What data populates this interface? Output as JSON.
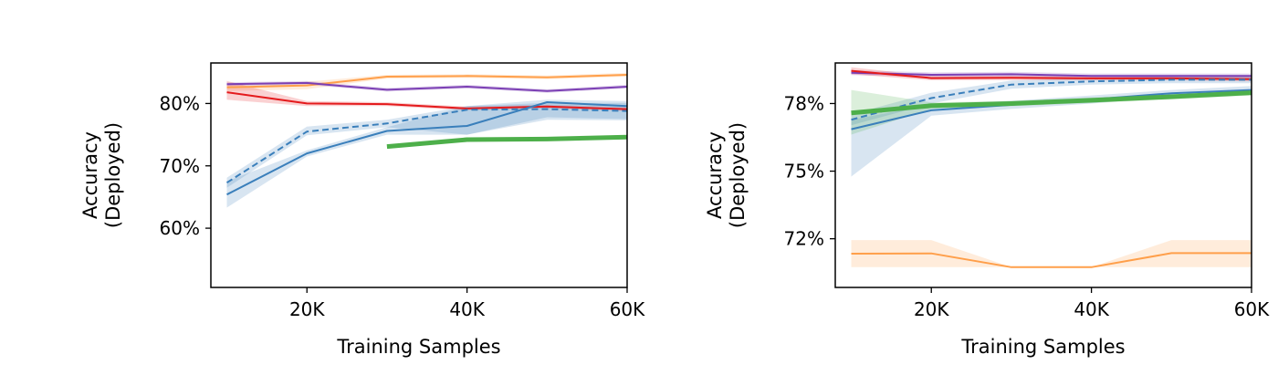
{
  "chart_data": [
    {
      "type": "line",
      "xlabel": "Training Samples",
      "ylabel": [
        "Accuracy",
        "(Deployed)"
      ],
      "xlim": [
        8000,
        60000
      ],
      "ylim": [
        50.5,
        86.5
      ],
      "xticks": [
        {
          "v": 20000,
          "label": "20K"
        },
        {
          "v": 40000,
          "label": "40K"
        },
        {
          "v": 60000,
          "label": "60K"
        }
      ],
      "yticks": [
        {
          "v": 60,
          "label": "60%"
        },
        {
          "v": 70,
          "label": "70%"
        },
        {
          "v": 80,
          "label": "80%"
        }
      ],
      "grid": false,
      "series": [
        {
          "color": "#ff9f4a",
          "style": "solid",
          "width": 2,
          "x": [
            10000,
            20000,
            30000,
            40000,
            50000,
            60000
          ],
          "y": [
            82.6,
            82.9,
            84.3,
            84.4,
            84.2,
            84.6
          ],
          "band_low": [
            82.0,
            82.3,
            84.0,
            84.1,
            83.9,
            84.3
          ],
          "band_high": [
            83.2,
            83.5,
            84.6,
            84.7,
            84.5,
            84.9
          ]
        },
        {
          "color": "#7b3fb4",
          "style": "solid",
          "width": 2,
          "x": [
            10000,
            20000,
            30000,
            40000,
            50000,
            60000
          ],
          "y": [
            83.1,
            83.3,
            82.2,
            82.7,
            82.0,
            82.7
          ],
          "band_low": [
            82.8,
            83.0,
            81.9,
            82.4,
            81.7,
            82.4
          ],
          "band_high": [
            83.4,
            83.6,
            82.5,
            83.0,
            82.3,
            83.0
          ]
        },
        {
          "color": "#e41a1c",
          "style": "solid",
          "width": 2,
          "x": [
            10000,
            20000,
            30000,
            40000,
            50000,
            60000
          ],
          "y": [
            81.8,
            80.0,
            79.9,
            79.2,
            79.5,
            79.1
          ],
          "band_low": [
            80.6,
            79.6,
            79.6,
            78.9,
            79.2,
            78.8
          ],
          "band_high": [
            83.6,
            80.4,
            80.2,
            79.5,
            79.8,
            79.4
          ]
        },
        {
          "color": "#3a7fbb",
          "style": "dashed",
          "width": 2,
          "x": [
            10000,
            20000,
            30000,
            40000,
            50000,
            60000
          ],
          "y": [
            67.3,
            75.5,
            76.8,
            79.0,
            79.1,
            78.8
          ],
          "band_low": [
            66.5,
            74.9,
            76.2,
            75.0,
            77.4,
            77.3
          ],
          "band_high": [
            68.1,
            76.3,
            77.4,
            79.6,
            80.1,
            80.1
          ]
        },
        {
          "color": "#3a7fbb",
          "style": "solid",
          "width": 2,
          "x": [
            10000,
            20000,
            30000,
            40000,
            50000,
            60000
          ],
          "y": [
            65.4,
            72.0,
            75.6,
            76.4,
            80.2,
            79.6
          ],
          "band_low": [
            63.3,
            71.5,
            75.0,
            75.0,
            77.8,
            77.5
          ],
          "band_high": [
            67.5,
            72.5,
            76.2,
            79.6,
            80.6,
            80.4
          ]
        },
        {
          "color": "#4daf4a",
          "style": "solid",
          "width": 5,
          "x": [
            30000,
            40000,
            50000,
            60000
          ],
          "y": [
            73.1,
            74.2,
            74.3,
            74.6
          ]
        }
      ]
    },
    {
      "type": "line",
      "xlabel": "Training Samples",
      "ylabel": [
        "Accuracy",
        "(Deployed)"
      ],
      "xlim": [
        8000,
        60000
      ],
      "ylim": [
        70.7,
        79.0
      ],
      "xticks": [
        {
          "v": 20000,
          "label": "20K"
        },
        {
          "v": 40000,
          "label": "40K"
        },
        {
          "v": 60000,
          "label": "60K"
        }
      ],
      "yticks": [
        {
          "v": 72.5,
          "label": "72%"
        },
        {
          "v": 75,
          "label": "75%"
        },
        {
          "v": 77.5,
          "label": "78%"
        }
      ],
      "grid": false,
      "series": [
        {
          "color": "#7b3fb4",
          "style": "solid",
          "width": 2,
          "x": [
            10000,
            20000,
            30000,
            40000,
            50000,
            60000
          ],
          "y": [
            78.64,
            78.56,
            78.58,
            78.52,
            78.52,
            78.52
          ],
          "band_low": [
            78.55,
            78.47,
            78.49,
            78.43,
            78.43,
            78.43
          ],
          "band_high": [
            78.73,
            78.65,
            78.67,
            78.61,
            78.61,
            78.61
          ]
        },
        {
          "color": "#e41a1c",
          "style": "solid",
          "width": 2,
          "x": [
            10000,
            20000,
            30000,
            40000,
            50000,
            60000
          ],
          "y": [
            78.71,
            78.44,
            78.45,
            78.43,
            78.43,
            78.4
          ],
          "band_low": [
            78.58,
            78.36,
            78.37,
            78.35,
            78.35,
            78.32
          ],
          "band_high": [
            78.84,
            78.52,
            78.53,
            78.51,
            78.51,
            78.48
          ]
        },
        {
          "color": "#3a7fbb",
          "style": "dashed",
          "width": 2,
          "x": [
            10000,
            20000,
            30000,
            40000,
            50000,
            60000
          ],
          "y": [
            76.9,
            77.7,
            78.2,
            78.32,
            78.38,
            78.38
          ],
          "band_low": [
            76.7,
            77.5,
            78.05,
            78.2,
            78.25,
            78.25
          ],
          "band_high": [
            77.1,
            77.9,
            78.35,
            78.44,
            78.51,
            78.51
          ]
        },
        {
          "color": "#3a7fbb",
          "style": "solid",
          "width": 2,
          "x": [
            10000,
            20000,
            30000,
            40000,
            50000,
            60000
          ],
          "y": [
            76.55,
            77.25,
            77.45,
            77.65,
            77.88,
            78.0
          ],
          "band_low": [
            74.8,
            77.05,
            77.3,
            77.5,
            77.75,
            77.85
          ],
          "band_high": [
            76.9,
            77.45,
            77.6,
            77.8,
            78.0,
            78.15
          ]
        },
        {
          "color": "#4daf4a",
          "style": "solid",
          "width": 5,
          "x": [
            10000,
            20000,
            30000,
            40000,
            50000,
            60000
          ],
          "y": [
            77.15,
            77.42,
            77.5,
            77.62,
            77.75,
            77.9
          ],
          "band_low": [
            76.35,
            77.3,
            77.4,
            77.52,
            77.65,
            77.8
          ],
          "band_high": [
            78.0,
            77.54,
            77.6,
            77.72,
            77.85,
            78.0
          ]
        },
        {
          "color": "#ff9f4a",
          "style": "solid",
          "width": 2,
          "x": [
            10000,
            20000,
            30000,
            40000,
            50000,
            60000
          ],
          "y": [
            71.95,
            71.96,
            71.45,
            71.45,
            71.97,
            71.97
          ],
          "band_low": [
            71.45,
            71.45,
            71.45,
            71.45,
            71.45,
            71.45
          ],
          "band_high": [
            72.45,
            72.45,
            71.45,
            71.45,
            72.45,
            72.45
          ]
        }
      ]
    }
  ]
}
